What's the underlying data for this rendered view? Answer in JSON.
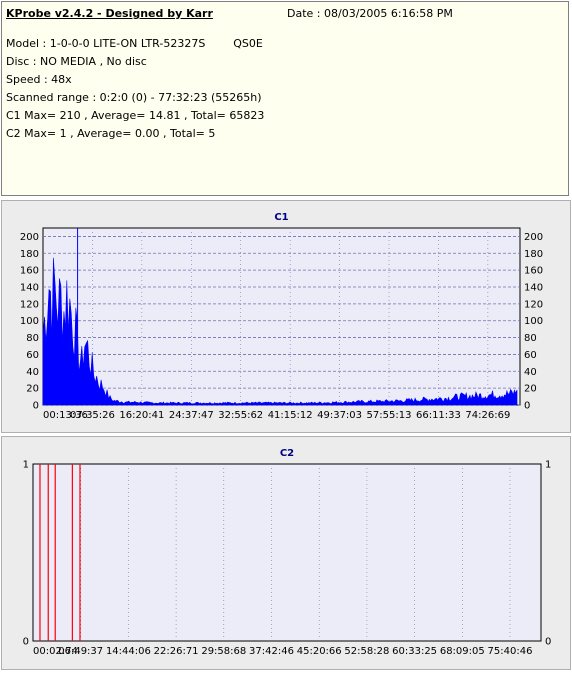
{
  "info": {
    "title": "KProbe v2.4.2 - Designed by Karr",
    "date": "Date : 08/03/2005 6:16:58 PM",
    "model": "Model : 1-0-0-0 LITE-ON LTR-52327S        QS0E",
    "disc": "Disc : NO MEDIA , No disc",
    "speed": "Speed : 48x",
    "scanned_range": "Scanned range : 0:2:0 (0) - 77:32:23 (55265h)",
    "c1_stats": "C1 Max= 210 , Average= 14.81 , Total= 65823",
    "c2_stats": "C2 Max= 1 , Average= 0.00 , Total= 5"
  },
  "colors": {
    "c1_fill": "#0000ff",
    "c2_line": "#ff0000",
    "plot_bg": "#ececf8",
    "grid": "#6f6fb0"
  },
  "chart_data": [
    {
      "type": "area",
      "title": "C1",
      "ylim": [
        0,
        210
      ],
      "yticks": [
        0,
        20,
        40,
        60,
        80,
        100,
        120,
        140,
        160,
        180,
        200
      ],
      "xlim": [
        0,
        80
      ],
      "xtick_labels": [
        "00:13:36",
        "07:35:26",
        "16:20:41",
        "24:37:47",
        "32:55:62",
        "41:15:12",
        "49:37:03",
        "57:55:13",
        "66:11:33",
        "74:26:69"
      ],
      "grid": true,
      "x": [
        0,
        0.5,
        1,
        1.5,
        2,
        2.5,
        3,
        3.5,
        4,
        4.5,
        5,
        5.5,
        6,
        6.5,
        7,
        7.5,
        8,
        8.5,
        9,
        9.5,
        10,
        10.5,
        11,
        11.5,
        12,
        13,
        14,
        16,
        18,
        20,
        25,
        30,
        35,
        40,
        45,
        50,
        55,
        60,
        62,
        64,
        66,
        68,
        70,
        72,
        74,
        76,
        78,
        79.5
      ],
      "values": [
        100,
        140,
        175,
        150,
        165,
        140,
        150,
        135,
        155,
        145,
        120,
        100,
        70,
        60,
        90,
        80,
        60,
        45,
        40,
        30,
        28,
        20,
        12,
        8,
        6,
        5,
        4,
        4,
        3,
        3,
        3,
        3,
        3,
        3,
        3,
        4,
        5,
        6,
        7,
        8,
        9,
        10,
        12,
        13,
        14,
        15,
        16,
        18
      ],
      "peak": {
        "x": 5.8,
        "y": 210
      }
    },
    {
      "type": "bar",
      "title": "C2",
      "ylim": [
        0,
        1
      ],
      "yticks": [
        0,
        1
      ],
      "xlim": [
        0,
        80
      ],
      "xtick_labels": [
        "00:02:74",
        "06:49:37",
        "14:44:06",
        "22:26:71",
        "29:58:68",
        "37:42:46",
        "45:20:66",
        "52:58:28",
        "60:33:25",
        "68:09:05",
        "75:40:46"
      ],
      "grid": true,
      "x": [
        1.1,
        2.4,
        3.5,
        6.2,
        7.4
      ],
      "values": [
        1,
        1,
        1,
        1,
        1
      ]
    }
  ]
}
